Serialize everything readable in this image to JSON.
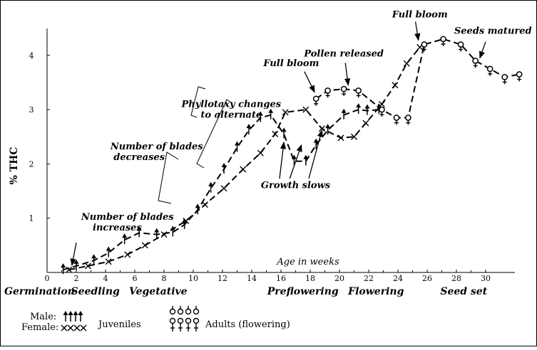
{
  "chart_data": {
    "type": "line",
    "ylabel": "% THC",
    "xlabel": "Age in weeks",
    "xlim": [
      0,
      32
    ],
    "ylim": [
      0,
      4.6
    ],
    "xticks": [
      "0",
      "2",
      "4",
      "6",
      "8",
      "10",
      "12",
      "14",
      "16",
      "18",
      "20",
      "22",
      "24",
      "26",
      "28",
      "30"
    ],
    "yticks": [
      "1",
      "2",
      "3",
      "4"
    ],
    "stages": [
      {
        "label": "Germination",
        "x": 0
      },
      {
        "label": "Seedling",
        "x": 3.3
      },
      {
        "label": "Vegetative",
        "x": 7.6
      },
      {
        "label": "Preflowering",
        "x": 17.5
      },
      {
        "label": "Flowering",
        "x": 22.5
      },
      {
        "label": "Seed set",
        "x": 28.5
      }
    ],
    "series": [
      {
        "name": "Male",
        "x": [
          1.1,
          2,
          3.2,
          4.2,
          5.3,
          6.3,
          7.5,
          8.6,
          9.4,
          10.3,
          11.2,
          12.1,
          13,
          13.8,
          14.6,
          15.3,
          16.2,
          16.9,
          17.7,
          18.4,
          19.2,
          20.3,
          21.3,
          21.9,
          22.7
        ],
        "y": [
          0.05,
          0.12,
          0.22,
          0.36,
          0.6,
          0.73,
          0.7,
          0.74,
          0.88,
          1.15,
          1.55,
          1.9,
          2.3,
          2.62,
          2.85,
          2.9,
          2.55,
          2.05,
          2.05,
          2.35,
          2.62,
          2.9,
          3.0,
          2.98,
          3.0
        ]
      },
      {
        "name": "Female",
        "x": [
          1.5,
          2.8,
          4.2,
          5.5,
          6.7,
          8,
          9.5,
          10.8,
          12.1,
          13.4,
          14.6,
          15.6,
          16.3,
          17.7,
          18.8,
          20.1,
          21,
          21.8,
          22.9,
          23.8,
          24.6,
          25.5
        ],
        "y": [
          0.05,
          0.12,
          0.2,
          0.33,
          0.5,
          0.7,
          0.95,
          1.25,
          1.55,
          1.9,
          2.2,
          2.55,
          2.95,
          3.0,
          2.65,
          2.48,
          2.5,
          2.75,
          3.1,
          3.45,
          3.85,
          4.15
        ]
      },
      {
        "name": "Adults (flowering)",
        "x": [
          18.4,
          19.2,
          20.3,
          21.3,
          22.9,
          23.9,
          24.7,
          25.8,
          27.1,
          28.3,
          29.3,
          30.3,
          31.3,
          32.3
        ],
        "y": [
          3.2,
          3.35,
          3.38,
          3.35,
          3.0,
          2.85,
          2.85,
          4.2,
          4.3,
          4.2,
          3.9,
          3.75,
          3.6,
          3.65
        ]
      }
    ],
    "annotations": [
      {
        "text": "Full bloom",
        "x": 25.5,
        "y": 4.7
      },
      {
        "text": "Seeds matured",
        "x": 30.5,
        "y": 4.4
      },
      {
        "text": "Pollen released",
        "x": 20.3,
        "y": 3.98
      },
      {
        "text": "Full bloom",
        "x": 16.7,
        "y": 3.8
      },
      {
        "text": "Phyllotaxy changes",
        "x": 12.6,
        "y": 3.05
      },
      {
        "text": "to alternate",
        "x": 12.6,
        "y": 2.85
      },
      {
        "text": "Number of blades",
        "x": 7.5,
        "y": 2.27
      },
      {
        "text": "decreases",
        "x": 6.3,
        "y": 2.07
      },
      {
        "text": "Growth slows",
        "x": 17,
        "y": 1.55
      },
      {
        "text": "Number of blades",
        "x": 5.5,
        "y": 0.97
      },
      {
        "text": "increases",
        "x": 4.8,
        "y": 0.77
      }
    ],
    "legend": {
      "male_label": "Male:",
      "female_label": "Female:",
      "juveniles_label": "Juveniles",
      "adults_label": "Adults (flowering)"
    },
    "grid": false
  }
}
